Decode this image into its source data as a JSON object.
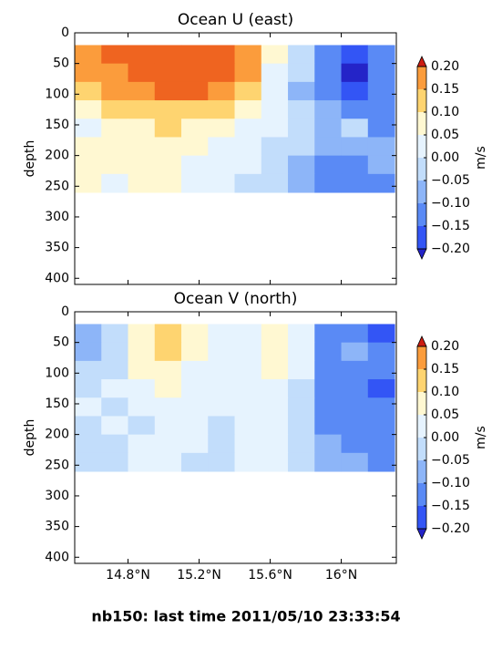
{
  "chart_data": [
    {
      "type": "contour",
      "title": "Ocean U (east)",
      "y_label": "depth",
      "x": [
        14.575,
        14.725,
        14.875,
        15.025,
        15.175,
        15.325,
        15.475,
        15.625,
        15.775,
        15.925,
        16.075,
        16.225
      ],
      "y": [
        35,
        65,
        95,
        125,
        155,
        185,
        215,
        245
      ],
      "values": [
        [
          0.17,
          0.22,
          0.23,
          0.24,
          0.25,
          0.23,
          0.18,
          0.06,
          -0.03,
          -0.12,
          -0.2,
          -0.12
        ],
        [
          0.16,
          0.19,
          0.22,
          0.23,
          0.24,
          0.22,
          0.16,
          0.04,
          -0.05,
          -0.14,
          -0.22,
          -0.13
        ],
        [
          0.12,
          0.15,
          0.18,
          0.2,
          0.22,
          0.18,
          0.12,
          0.03,
          -0.06,
          -0.12,
          -0.18,
          -0.12
        ],
        [
          0.09,
          0.1,
          0.12,
          0.14,
          0.12,
          0.1,
          0.06,
          0.02,
          -0.05,
          -0.1,
          -0.13,
          -0.12
        ],
        [
          0.04,
          0.07,
          0.09,
          0.1,
          0.08,
          0.06,
          0.03,
          0.01,
          -0.04,
          -0.08,
          -0.04,
          -0.11
        ],
        [
          0.06,
          0.08,
          0.07,
          0.09,
          0.06,
          0.04,
          0.02,
          -0.01,
          -0.05,
          -0.09,
          -0.09,
          -0.1
        ],
        [
          0.07,
          0.06,
          0.08,
          0.06,
          0.04,
          0.03,
          0.01,
          -0.02,
          -0.06,
          -0.11,
          -0.12,
          -0.1
        ],
        [
          0.06,
          0.04,
          0.06,
          0.05,
          0.02,
          0.01,
          -0.02,
          -0.03,
          -0.07,
          -0.13,
          -0.13,
          -0.11
        ]
      ],
      "xlim": [
        14.5,
        16.31
      ],
      "xticks": [
        14.8,
        15.2,
        15.6,
        16
      ],
      "ylim": [
        410,
        0
      ],
      "yticks": [
        0,
        50,
        100,
        150,
        200,
        250,
        300,
        350,
        400
      ],
      "colorbar": {
        "label": "m/s",
        "levels": [
          -0.2,
          -0.15,
          -0.1,
          -0.05,
          0,
          0.05,
          0.1,
          0.15,
          0.2
        ],
        "colors": [
          "#2424c8",
          "#3355f5",
          "#5a8af5",
          "#8db5f8",
          "#c2ddfb",
          "#e6f3fe",
          "#fff8d2",
          "#fed470",
          "#fb9c3c",
          "#ef6420",
          "#cc1c12"
        ],
        "ticks": [
          {
            "value": 0.2,
            "label": "0.20"
          },
          {
            "value": 0.15,
            "label": "0.15"
          },
          {
            "value": 0.1,
            "label": "0.10"
          },
          {
            "value": 0.05,
            "label": "0.05"
          },
          {
            "value": 0,
            "label": "0.00"
          },
          {
            "value": -0.05,
            "label": "−0.05"
          },
          {
            "value": -0.1,
            "label": "−0.10"
          },
          {
            "value": -0.15,
            "label": "−0.15"
          },
          {
            "value": -0.2,
            "label": "−0.20"
          }
        ]
      }
    },
    {
      "type": "contour",
      "title": "Ocean V (north)",
      "y_label": "depth",
      "x": [
        14.575,
        14.725,
        14.875,
        15.025,
        15.175,
        15.325,
        15.475,
        15.625,
        15.775,
        15.925,
        16.075,
        16.225
      ],
      "y": [
        35,
        65,
        95,
        125,
        155,
        185,
        215,
        245
      ],
      "values": [
        [
          -0.08,
          -0.03,
          0.08,
          0.12,
          0.07,
          0.03,
          0.04,
          0.07,
          0.02,
          -0.12,
          -0.12,
          -0.2
        ],
        [
          -0.07,
          -0.02,
          0.07,
          0.1,
          0.06,
          0.02,
          0.03,
          0.06,
          0.01,
          -0.13,
          -0.1,
          -0.15
        ],
        [
          -0.03,
          -0.01,
          0.05,
          0.07,
          0.03,
          0.02,
          0.02,
          0.05,
          0.01,
          -0.14,
          -0.11,
          -0.13
        ],
        [
          -0.02,
          0.01,
          0.03,
          0.05,
          0.02,
          0.01,
          0.02,
          0.04,
          -0.01,
          -0.13,
          -0.12,
          -0.17
        ],
        [
          0.02,
          -0.02,
          0.01,
          0.03,
          0.01,
          0.02,
          0.01,
          0.03,
          -0.02,
          -0.12,
          -0.11,
          -0.13
        ],
        [
          -0.03,
          0.03,
          -0.02,
          0.02,
          0.01,
          -0.01,
          0.02,
          0.04,
          -0.02,
          -0.11,
          -0.12,
          -0.14
        ],
        [
          -0.04,
          -0.02,
          0.02,
          0.02,
          0.01,
          -0.02,
          0.01,
          0.02,
          -0.03,
          -0.1,
          -0.11,
          -0.13
        ],
        [
          -0.03,
          -0.02,
          0.03,
          0.01,
          -0.01,
          -0.02,
          0.01,
          0.02,
          -0.03,
          -0.1,
          -0.1,
          -0.12
        ]
      ],
      "xlim": [
        14.5,
        16.31
      ],
      "xticks": [
        {
          "value": 14.8,
          "label": "14.8°N"
        },
        {
          "value": 15.2,
          "label": "15.2°N"
        },
        {
          "value": 15.6,
          "label": "15.6°N"
        },
        {
          "value": 16,
          "label": "16°N"
        }
      ],
      "ylim": [
        410,
        0
      ],
      "yticks": [
        0,
        50,
        100,
        150,
        200,
        250,
        300,
        350,
        400
      ],
      "colorbar": {
        "label": "m/s",
        "levels": [
          -0.2,
          -0.15,
          -0.1,
          -0.05,
          0,
          0.05,
          0.1,
          0.15,
          0.2
        ],
        "colors": [
          "#2424c8",
          "#3355f5",
          "#5a8af5",
          "#8db5f8",
          "#c2ddfb",
          "#e6f3fe",
          "#fff8d2",
          "#fed470",
          "#fb9c3c",
          "#ef6420",
          "#cc1c12"
        ],
        "ticks": [
          {
            "value": 0.2,
            "label": "0.20"
          },
          {
            "value": 0.15,
            "label": "0.15"
          },
          {
            "value": 0.1,
            "label": "0.10"
          },
          {
            "value": 0.05,
            "label": "0.05"
          },
          {
            "value": 0,
            "label": "0.00"
          },
          {
            "value": -0.05,
            "label": "−0.05"
          },
          {
            "value": -0.1,
            "label": "−0.10"
          },
          {
            "value": -0.15,
            "label": "−0.15"
          },
          {
            "value": -0.2,
            "label": "−0.20"
          }
        ]
      }
    }
  ],
  "footer": "nb150: last time 2011/05/10 23:33:54"
}
